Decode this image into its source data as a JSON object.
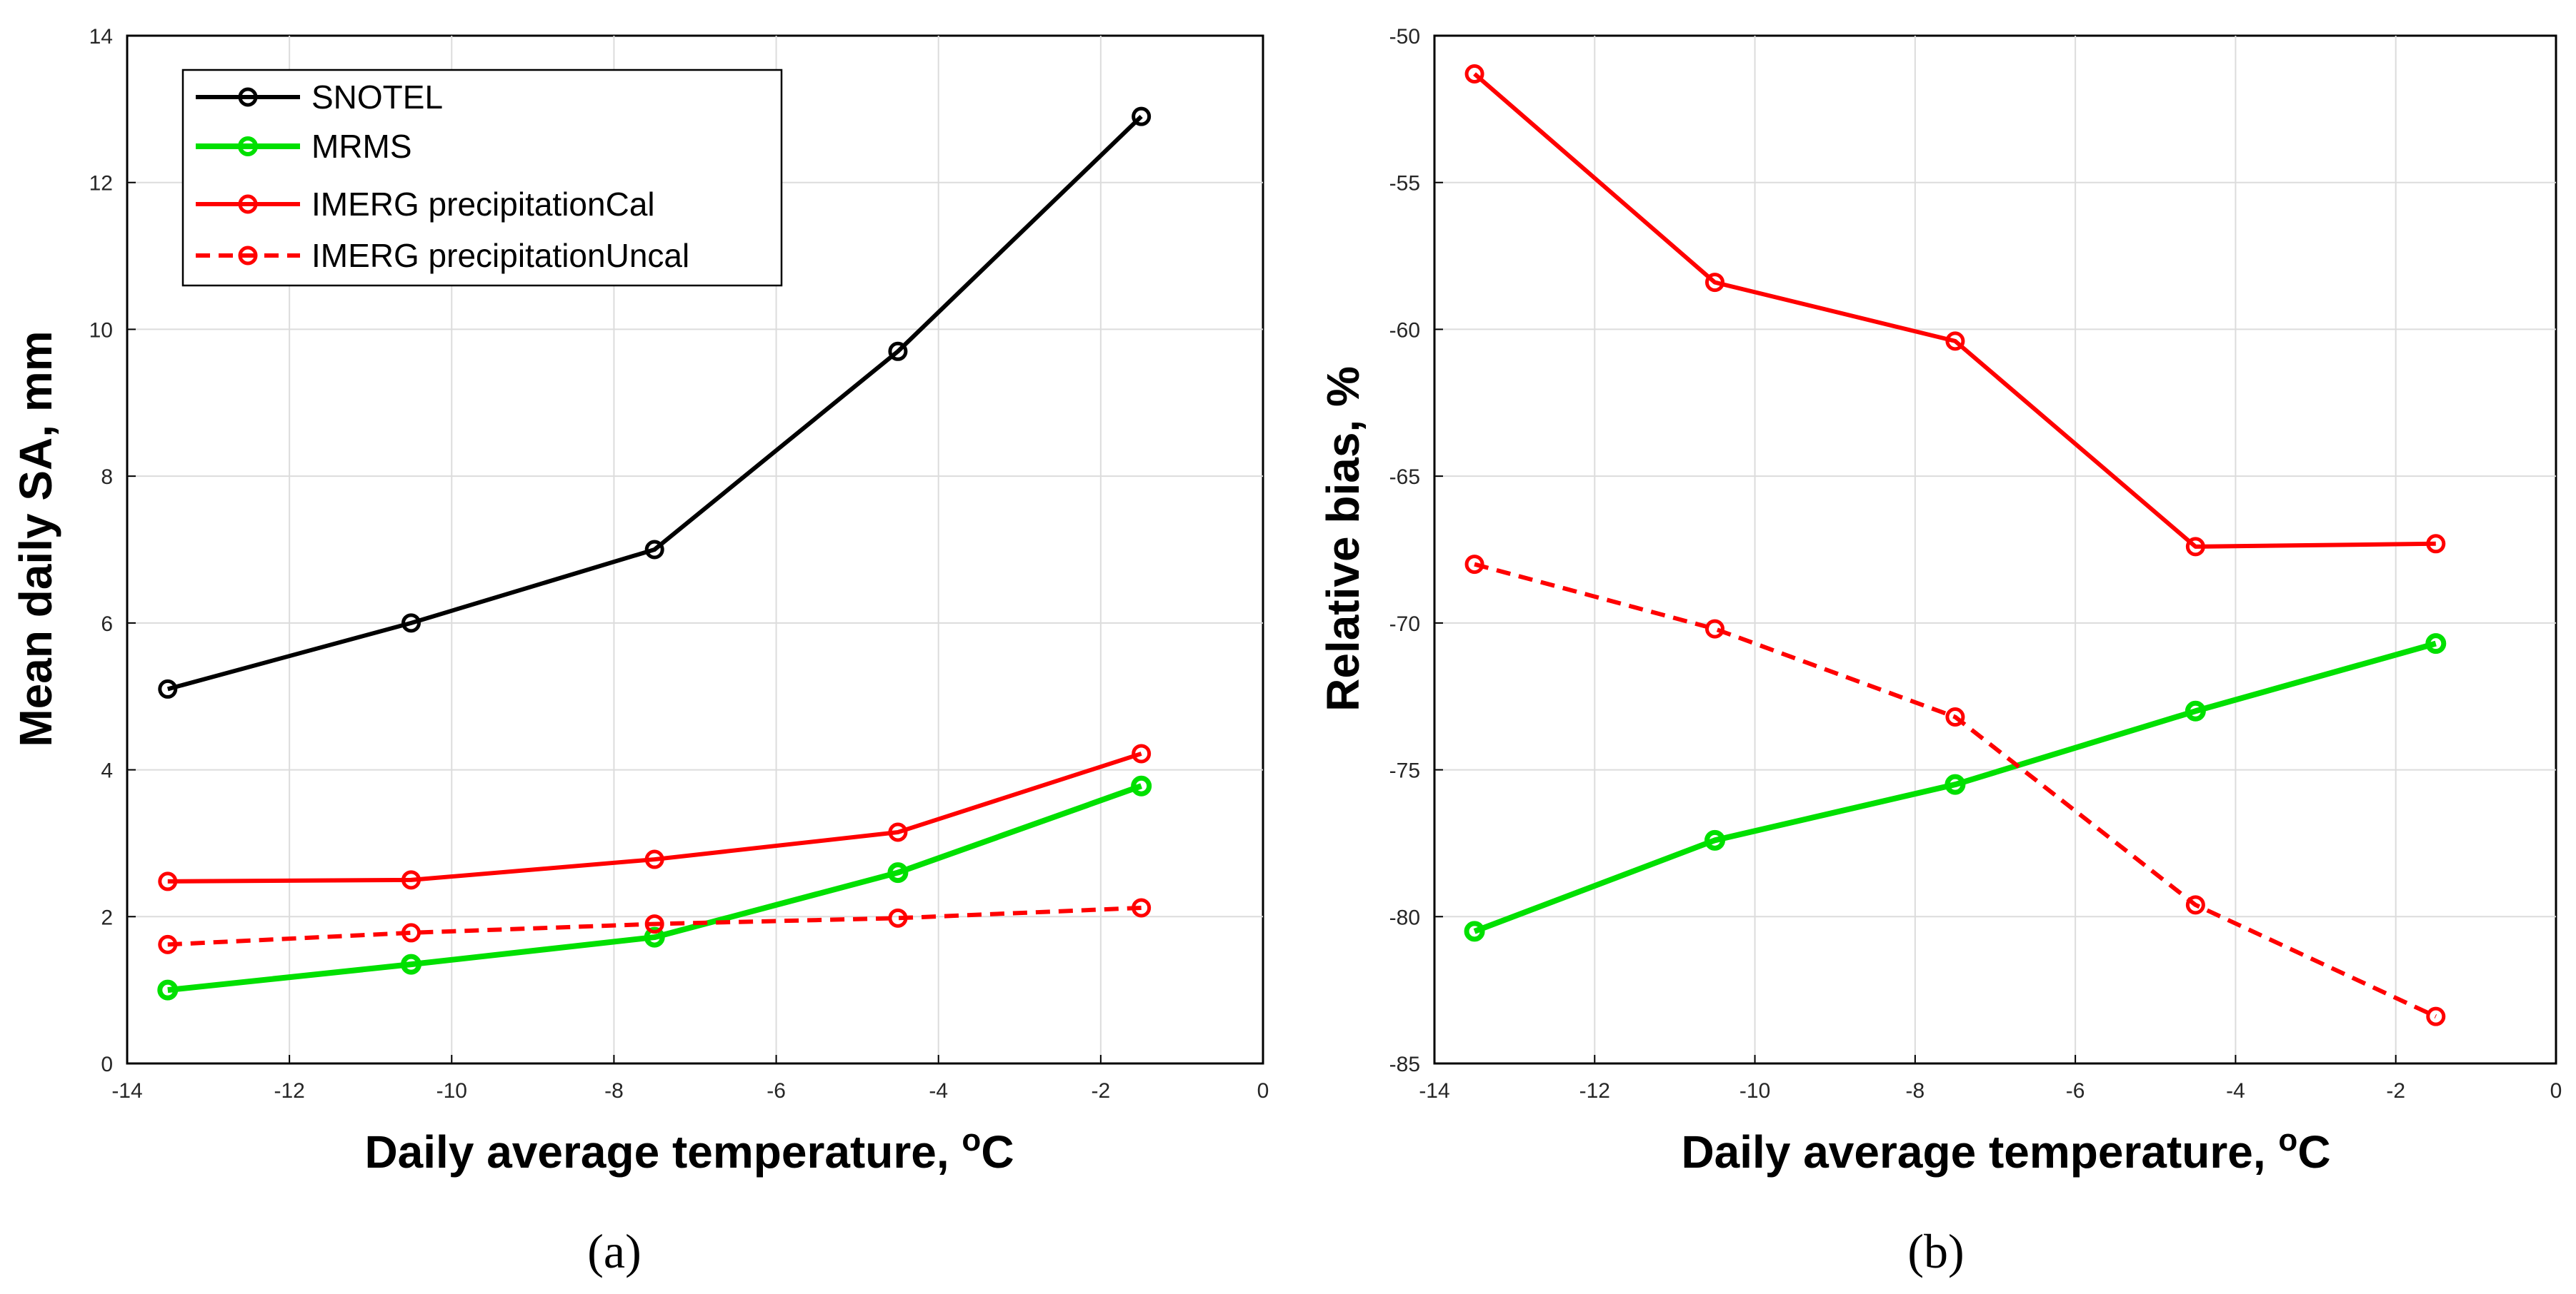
{
  "chart_data": [
    {
      "panel_label": "(a)",
      "type": "line",
      "xlabel": "Daily average temperature, ",
      "xlabel_sup": "o",
      "xlabel_unit": "C",
      "ylabel": "Mean daily SA, mm",
      "xlim": [
        -14,
        0
      ],
      "ylim": [
        0,
        14
      ],
      "xticks": [
        -14,
        -12,
        -10,
        -8,
        -6,
        -4,
        -2,
        0
      ],
      "yticks": [
        0,
        2,
        4,
        6,
        8,
        10,
        12,
        14
      ],
      "grid": true,
      "legend_position": "top-left",
      "series": [
        {
          "name": "SNOTEL",
          "color": "#000000",
          "style": "solid",
          "x": [
            -13.5,
            -10.5,
            -7.5,
            -4.5,
            -1.5
          ],
          "y": [
            5.1,
            6.0,
            7.0,
            9.7,
            12.9
          ]
        },
        {
          "name": "MRMS",
          "color": "#00e000",
          "style": "solid",
          "x": [
            -13.5,
            -10.5,
            -7.5,
            -4.5,
            -1.5
          ],
          "y": [
            1.0,
            1.35,
            1.72,
            2.6,
            3.78
          ]
        },
        {
          "name": "IMERG precipitationCal",
          "color": "#ff0000",
          "style": "solid",
          "x": [
            -13.5,
            -10.5,
            -7.5,
            -4.5,
            -1.5
          ],
          "y": [
            2.48,
            2.5,
            2.78,
            3.15,
            4.22
          ]
        },
        {
          "name": "IMERG precipitationUncal",
          "color": "#ff0000",
          "style": "dashed",
          "x": [
            -13.5,
            -10.5,
            -7.5,
            -4.5,
            -1.5
          ],
          "y": [
            1.62,
            1.78,
            1.9,
            1.98,
            2.12
          ]
        }
      ]
    },
    {
      "panel_label": "(b)",
      "type": "line",
      "xlabel": "Daily average temperature, ",
      "xlabel_sup": "o",
      "xlabel_unit": "C",
      "ylabel": "Relative bias, %",
      "xlim": [
        -14,
        0
      ],
      "ylim": [
        -85,
        -50
      ],
      "xticks": [
        -14,
        -12,
        -10,
        -8,
        -6,
        -4,
        -2,
        0
      ],
      "yticks": [
        -85,
        -80,
        -75,
        -70,
        -65,
        -60,
        -55,
        -50
      ],
      "grid": true,
      "series": [
        {
          "name": "MRMS",
          "color": "#00e000",
          "style": "solid",
          "x": [
            -13.5,
            -10.5,
            -7.5,
            -4.5,
            -1.5
          ],
          "y": [
            -80.5,
            -77.4,
            -75.5,
            -73.0,
            -70.7
          ]
        },
        {
          "name": "IMERG precipitationCal",
          "color": "#ff0000",
          "style": "solid",
          "x": [
            -13.5,
            -10.5,
            -7.5,
            -4.5,
            -1.5
          ],
          "y": [
            -51.3,
            -58.4,
            -60.4,
            -67.4,
            -67.3
          ]
        },
        {
          "name": "IMERG precipitationUncal",
          "color": "#ff0000",
          "style": "dashed",
          "x": [
            -13.5,
            -10.5,
            -7.5,
            -4.5,
            -1.5
          ],
          "y": [
            -68.0,
            -70.2,
            -73.2,
            -79.6,
            -83.4
          ]
        }
      ]
    }
  ]
}
